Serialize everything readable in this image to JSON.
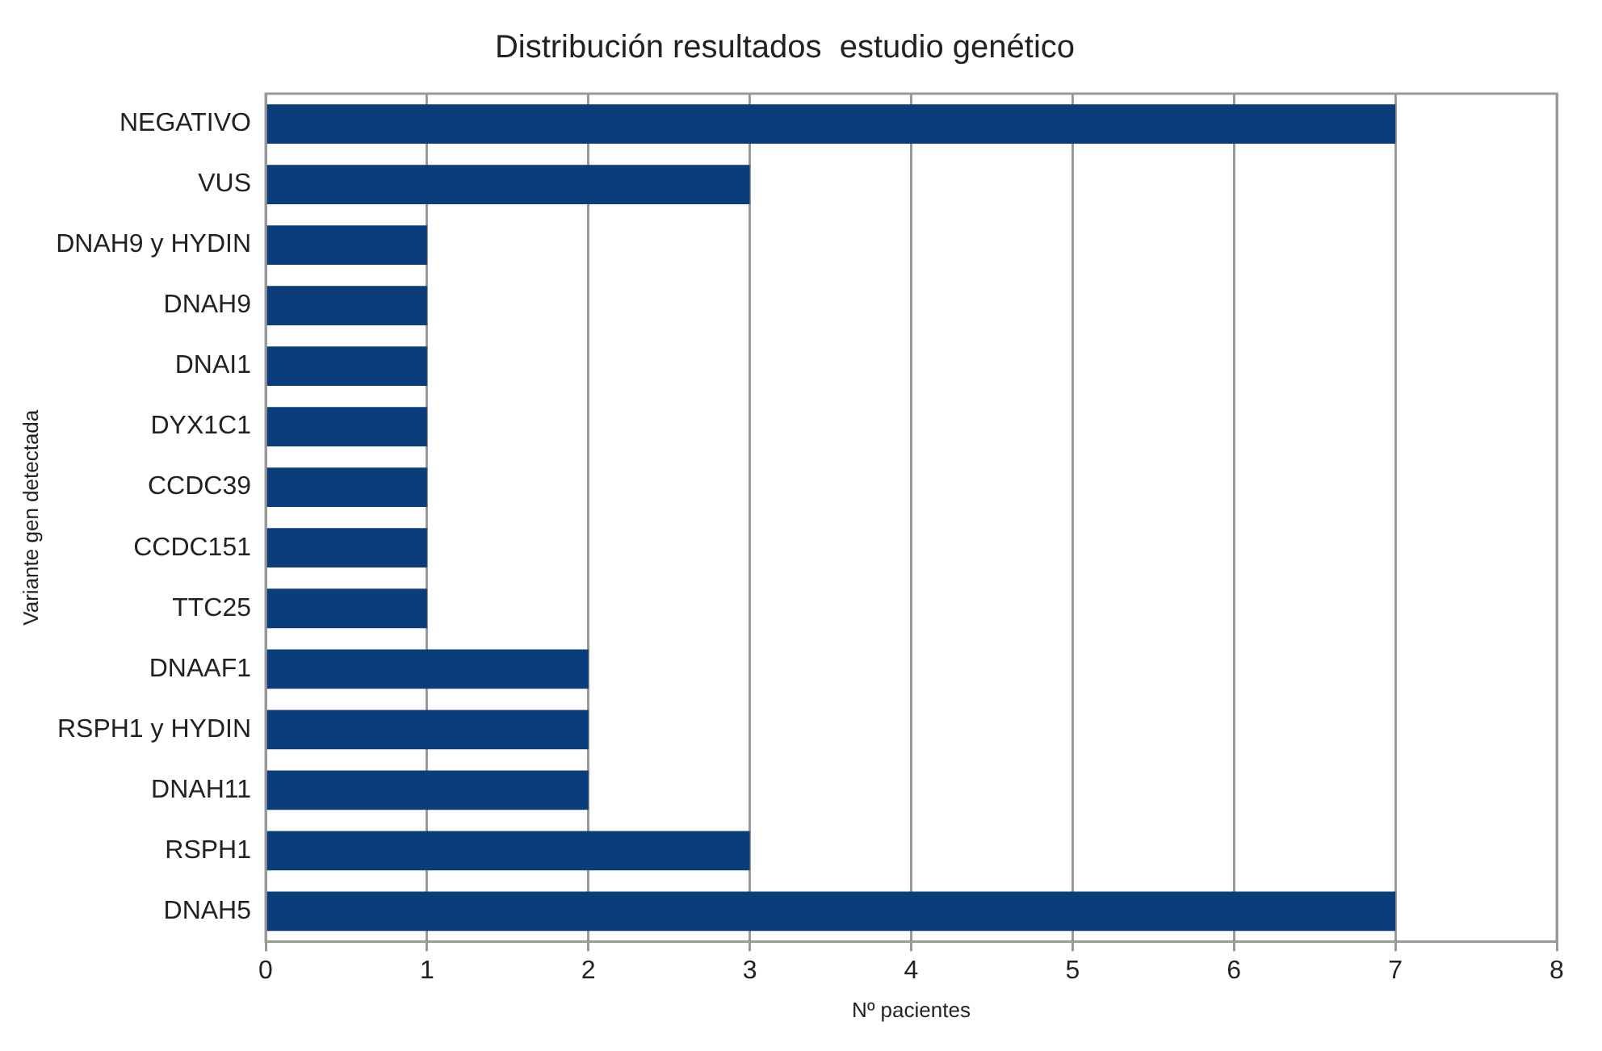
{
  "chart_data": {
    "type": "bar",
    "orientation": "horizontal",
    "title": "Distribución resultados  estudio genético",
    "xlabel": "Nº pacientes",
    "ylabel": "Variante gen detectada",
    "categories": [
      "NEGATIVO",
      "VUS",
      "DNAH9 y HYDIN",
      "DNAH9",
      "DNAI1",
      "DYX1C1",
      "CCDC39",
      "CCDC151",
      "TTC25",
      "DNAAF1",
      "RSPH1 y HYDIN",
      "DNAH11",
      "RSPH1",
      "DNAH5"
    ],
    "values": [
      7,
      3,
      1,
      1,
      1,
      1,
      1,
      1,
      1,
      2,
      2,
      2,
      3,
      7
    ],
    "color": "#0b3d7a",
    "xlim": [
      0,
      8
    ],
    "xticks": [
      0,
      1,
      2,
      3,
      4,
      5,
      6,
      7,
      8
    ],
    "grid": "x",
    "legend": false
  }
}
